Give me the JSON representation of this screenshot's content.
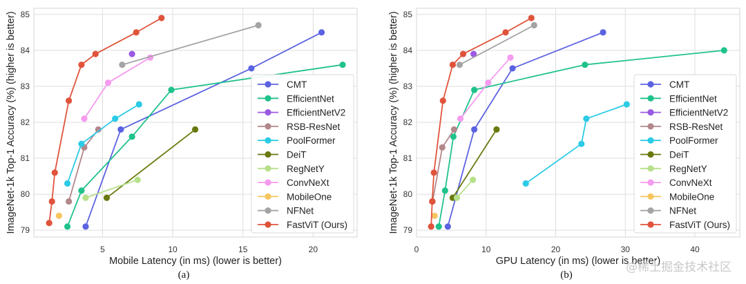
{
  "watermark": "@稀土掘金技术社区",
  "legend_order": [
    "CMT",
    "EfficientNet",
    "EfficientNetV2",
    "RSB-ResNet",
    "PoolFormer",
    "DeiT",
    "RegNetY",
    "ConvNeXt",
    "MobileOne",
    "NFNet",
    "FastViT (Ours)"
  ],
  "colors": {
    "CMT": "#5b63e1",
    "EfficientNet": "#1fc28b",
    "EfficientNetV2": "#9a5ae2",
    "RSB-ResNet": "#b3878b",
    "PoolFormer": "#2bcbe6",
    "DeiT": "#6a790e",
    "RegNetY": "#b6e08a",
    "ConvNeXt": "#f59bef",
    "MobileOne": "#f7c55e",
    "NFNet": "#a4a4a4",
    "FastViT (Ours)": "#e0533b"
  },
  "chart_data": [
    {
      "type": "line",
      "caption": "(a)",
      "title": "",
      "xlabel": "Mobile Latency (in ms) (lower is better)",
      "ylabel": "ImageNet-1k Top-1 Accuracy (%) (higher is better)",
      "xlim": [
        0.11,
        23.13
      ],
      "ylim": [
        78.81,
        85.17
      ],
      "xticks": [
        5,
        10,
        15,
        20
      ],
      "yticks": [
        79,
        80,
        81,
        82,
        83,
        84,
        85
      ],
      "grid": true,
      "legend": "right",
      "series": [
        {
          "name": "CMT",
          "x": [
            3.8,
            6.3,
            15.6,
            20.6
          ],
          "y": [
            79.1,
            81.8,
            83.5,
            84.5
          ]
        },
        {
          "name": "EfficientNet",
          "x": [
            2.5,
            3.5,
            7.1,
            9.9,
            22.1
          ],
          "y": [
            79.1,
            80.1,
            81.6,
            82.9,
            83.6
          ]
        },
        {
          "name": "EfficientNetV2",
          "x": [
            7.1
          ],
          "y": [
            83.9
          ]
        },
        {
          "name": "RSB-ResNet",
          "x": [
            2.6,
            3.7,
            4.7
          ],
          "y": [
            79.8,
            81.3,
            81.8
          ]
        },
        {
          "name": "PoolFormer",
          "x": [
            2.5,
            3.5,
            5.9,
            7.6
          ],
          "y": [
            80.3,
            81.4,
            82.1,
            82.5
          ]
        },
        {
          "name": "DeiT",
          "x": [
            5.3,
            11.6
          ],
          "y": [
            79.9,
            81.8
          ]
        },
        {
          "name": "RegNetY",
          "x": [
            3.8,
            7.5
          ],
          "y": [
            79.9,
            80.4
          ]
        },
        {
          "name": "ConvNeXt",
          "x": [
            3.7,
            5.4,
            8.4
          ],
          "y": [
            82.1,
            83.1,
            83.8
          ]
        },
        {
          "name": "MobileOne",
          "x": [
            1.9
          ],
          "y": [
            79.4
          ]
        },
        {
          "name": "NFNet",
          "x": [
            6.4,
            16.1
          ],
          "y": [
            83.6,
            84.7
          ]
        },
        {
          "name": "FastViT (Ours)",
          "x": [
            1.2,
            1.4,
            1.6,
            2.6,
            3.5,
            4.5,
            7.4,
            9.2
          ],
          "y": [
            79.2,
            79.8,
            80.6,
            82.6,
            83.6,
            83.9,
            84.5,
            84.9
          ]
        }
      ]
    },
    {
      "type": "line",
      "caption": "(b)",
      "title": "",
      "xlabel": "GPU Latency (in ms) (lower is better)",
      "ylabel": "ImageNet-1k Top-1 Accuracy (%) (higher is better)",
      "xlim": [
        0,
        46.45
      ],
      "ylim": [
        78.81,
        85.17
      ],
      "xticks": [
        0,
        10,
        20,
        30,
        40
      ],
      "yticks": [
        79,
        80,
        81,
        82,
        83,
        84,
        85
      ],
      "grid": true,
      "legend": "right",
      "series": [
        {
          "name": "CMT",
          "x": [
            4.5,
            8.3,
            13.8,
            26.8
          ],
          "y": [
            79.1,
            81.8,
            83.5,
            84.5
          ]
        },
        {
          "name": "EfficientNet",
          "x": [
            3.2,
            4.1,
            5.3,
            8.3,
            24.2,
            44.2
          ],
          "y": [
            79.1,
            80.1,
            81.6,
            82.9,
            83.6,
            84.0
          ]
        },
        {
          "name": "EfficientNetV2",
          "x": [
            8.2
          ],
          "y": [
            83.9
          ]
        },
        {
          "name": "RSB-ResNet",
          "x": [
            2.3,
            3.7,
            5.4
          ],
          "y": [
            79.8,
            81.3,
            81.8
          ]
        },
        {
          "name": "PoolFormer",
          "x": [
            15.7,
            23.7,
            24.4,
            30.2
          ],
          "y": [
            80.3,
            81.4,
            82.1,
            82.5
          ]
        },
        {
          "name": "DeiT",
          "x": [
            5.2,
            11.5
          ],
          "y": [
            79.9,
            81.8
          ]
        },
        {
          "name": "RegNetY",
          "x": [
            5.8,
            8.1
          ],
          "y": [
            79.9,
            80.4
          ]
        },
        {
          "name": "ConvNeXt",
          "x": [
            6.3,
            10.3,
            13.5
          ],
          "y": [
            82.1,
            83.1,
            83.8
          ]
        },
        {
          "name": "MobileOne",
          "x": [
            2.6
          ],
          "y": [
            79.4
          ]
        },
        {
          "name": "NFNet",
          "x": [
            6.2,
            16.9
          ],
          "y": [
            83.6,
            84.7
          ]
        },
        {
          "name": "FastViT (Ours)",
          "x": [
            2.1,
            2.25,
            2.5,
            3.8,
            5.2,
            6.7,
            12.8,
            16.5
          ],
          "y": [
            79.1,
            79.8,
            80.6,
            82.6,
            83.6,
            83.9,
            84.5,
            84.9
          ]
        }
      ]
    }
  ]
}
